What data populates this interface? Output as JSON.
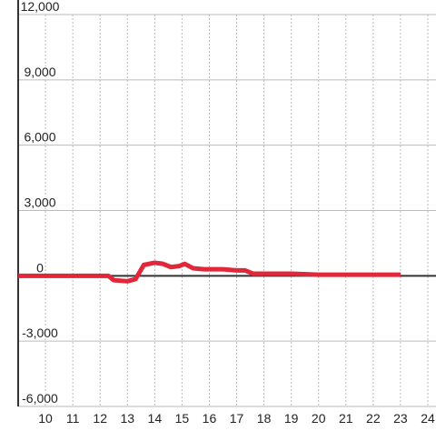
{
  "chart_data": {
    "type": "line",
    "x": [
      9,
      12.3,
      12.5,
      13.0,
      13.3,
      13.6,
      14.0,
      14.3,
      14.6,
      14.9,
      15.1,
      15.4,
      15.8,
      16.5,
      17.0,
      17.3,
      17.6,
      18.0,
      19.0,
      20.0,
      21.0,
      22.0,
      23.0
    ],
    "series": [
      {
        "color": "#e0283a",
        "values": [
          0,
          0,
          -200,
          -250,
          -150,
          500,
          600,
          550,
          400,
          450,
          550,
          350,
          300,
          300,
          250,
          250,
          100,
          100,
          100,
          50,
          50,
          50,
          50
        ]
      }
    ],
    "xlim": [
      9,
      24.3
    ],
    "xticks": [
      10,
      11,
      12,
      13,
      14,
      15,
      16,
      17,
      18,
      19,
      20,
      21,
      22,
      23,
      24
    ],
    "ylim": [
      -6000,
      12000
    ],
    "yticks": [
      {
        "value": -6000,
        "label": "-6,000"
      },
      {
        "value": -3000,
        "label": "-3,000"
      },
      0,
      {
        "value": 3000,
        "label": "3,000"
      },
      {
        "value": 6000,
        "label": "6,000"
      },
      {
        "value": 9000,
        "label": "9,000"
      },
      {
        "value": 12000,
        "label": "12,000"
      }
    ],
    "grid": true
  }
}
